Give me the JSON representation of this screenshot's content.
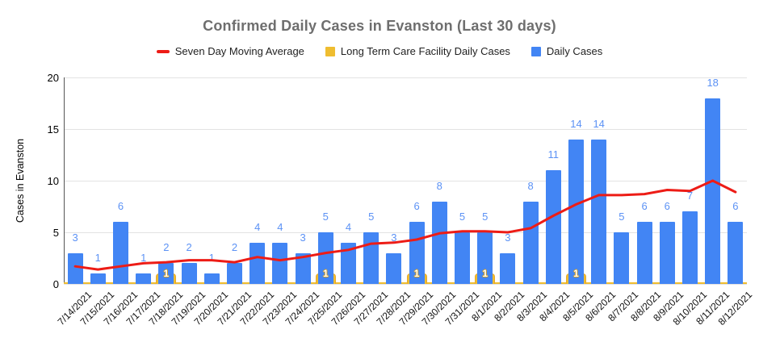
{
  "title": "Confirmed Daily Cases in Evanston (Last 30 days)",
  "y_axis": {
    "title": "Cases in Evanston"
  },
  "colors": {
    "daily": "#4285F4",
    "daily_label": "#5C92F5",
    "ltc": "#EFBD30",
    "ltc_border": "#E6A92C",
    "moving_average": "#ED1C16",
    "title_text": "#6E6E6E",
    "legend_text": "#1F1F1F",
    "gridline": "#E3E3E3",
    "axis_line": "#555555",
    "tick_text": "#000000"
  },
  "chart_data": {
    "type": "bar",
    "title": "Confirmed Daily Cases in Evanston (Last 30 days)",
    "xlabel": "",
    "ylabel": "Cases in Evanston",
    "ylim": [
      0,
      20
    ],
    "y_ticks": [
      0,
      5,
      10,
      15,
      20
    ],
    "grid": true,
    "legend_position": "top",
    "categories": [
      "7/14/2021",
      "7/15/2021",
      "7/16/2021",
      "7/17/2021",
      "7/18/2021",
      "7/19/2021",
      "7/20/2021",
      "7/21/2021",
      "7/22/2021",
      "7/23/2021",
      "7/24/2021",
      "7/25/2021",
      "7/26/2021",
      "7/27/2021",
      "7/28/2021",
      "7/29/2021",
      "7/30/2021",
      "7/31/2021",
      "8/1/2021",
      "8/2/2021",
      "8/3/2021",
      "8/4/2021",
      "8/5/2021",
      "8/6/2021",
      "8/7/2021",
      "8/8/2021",
      "8/9/2021",
      "8/10/2021",
      "8/11/2021",
      "8/12/2021"
    ],
    "series": [
      {
        "name": "Seven Day Moving Average",
        "type": "line",
        "values": [
          1.7,
          1.4,
          1.7,
          2.0,
          2.1,
          2.3,
          2.3,
          2.1,
          2.6,
          2.3,
          2.6,
          3.0,
          3.3,
          3.9,
          4.0,
          4.3,
          4.9,
          5.1,
          5.1,
          5.0,
          5.4,
          6.6,
          7.7,
          8.6,
          8.6,
          8.7,
          9.1,
          9.0,
          10.0,
          8.9
        ]
      },
      {
        "name": "Long Term Care Facility Daily Cases",
        "type": "bar",
        "values": [
          0,
          0,
          0,
          0,
          1,
          0,
          0,
          0,
          0,
          0,
          0,
          1,
          0,
          0,
          0,
          1,
          0,
          0,
          1,
          0,
          0,
          0,
          1,
          0,
          0,
          0,
          0,
          0,
          0,
          0
        ]
      },
      {
        "name": "Daily Cases",
        "type": "bar",
        "values": [
          3,
          1,
          6,
          1,
          2,
          2,
          1,
          2,
          4,
          4,
          3,
          5,
          4,
          5,
          3,
          6,
          8,
          5,
          5,
          3,
          8,
          11,
          14,
          14,
          5,
          6,
          6,
          7,
          18,
          6
        ]
      }
    ]
  }
}
